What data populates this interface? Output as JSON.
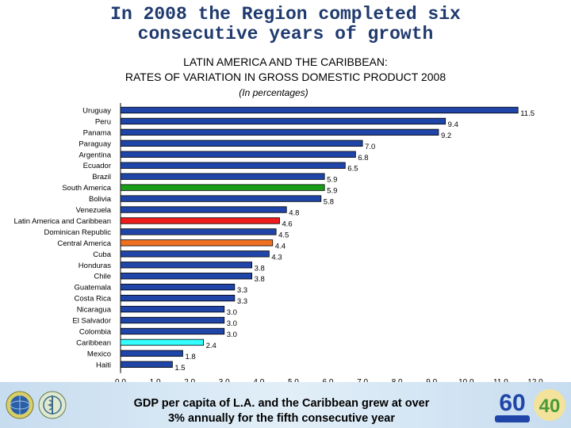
{
  "headline": [
    "In 2008 the Region completed six",
    "consecutive years of growth"
  ],
  "chart_data": {
    "type": "bar",
    "orientation": "horizontal",
    "title": [
      "LATIN AMERICA AND THE CARIBBEAN:",
      "RATES OF VARIATION IN GROSS DOMESTIC PRODUCT 2008"
    ],
    "subtitle": "(In percentages)",
    "categories": [
      "Uruguay",
      "Peru",
      "Panama",
      "Paraguay",
      "Argentina",
      "Ecuador",
      "Brazil",
      "South America",
      "Bolivia",
      "Venezuela",
      "Latin America and Caribbean",
      "Dominican Republic",
      "Central America",
      "Cuba",
      "Honduras",
      "Chile",
      "Guatemala",
      "Costa Rica",
      "Nicaragua",
      "El Salvador",
      "Colombia",
      "Caribbean",
      "Mexico",
      "Haiti"
    ],
    "values": [
      11.5,
      9.4,
      9.2,
      7.0,
      6.8,
      6.5,
      5.9,
      5.9,
      5.8,
      4.8,
      4.6,
      4.5,
      4.4,
      4.3,
      3.8,
      3.8,
      3.3,
      3.3,
      3.0,
      3.0,
      3.0,
      2.4,
      1.8,
      1.5
    ],
    "value_labels": [
      "11.5",
      "9.4",
      "9.2",
      "7.0",
      "6.8",
      "6.5",
      "5.9",
      "5.9",
      "5.8",
      "4.8",
      "4.6",
      "4.5",
      "4.4",
      "4.3",
      "3.8",
      "3.8",
      "3.3",
      "3.3",
      "3.0",
      "3.0",
      "3.0",
      "2.4",
      "1.8",
      "1.5"
    ],
    "highlight": {
      "South America": "#1a9e1a",
      "Latin America and Caribbean": "#ee1c1c",
      "Central America": "#f07020",
      "Caribbean": "#33ffff"
    },
    "default_color": "#1f45a8",
    "xlim": [
      0,
      12
    ],
    "xticks": [
      "0.0",
      "1.0",
      "2.0",
      "3.0",
      "4.0",
      "5.0",
      "6.0",
      "7.0",
      "8.0",
      "9.0",
      "10.0",
      "11.0",
      "12.0"
    ],
    "grid": false,
    "legend": "none"
  },
  "footer": {
    "caption": [
      "GDP per capita of L.A. and the Caribbean grew at over",
      "3% annually for the fifth consecutive year"
    ],
    "logo_main_text": "60",
    "logo_anniv_text": "40"
  },
  "icons": [
    "un-globe-icon",
    "who-emblem-icon",
    "eclac-60-years-logo",
    "anniversary-40-logo"
  ]
}
